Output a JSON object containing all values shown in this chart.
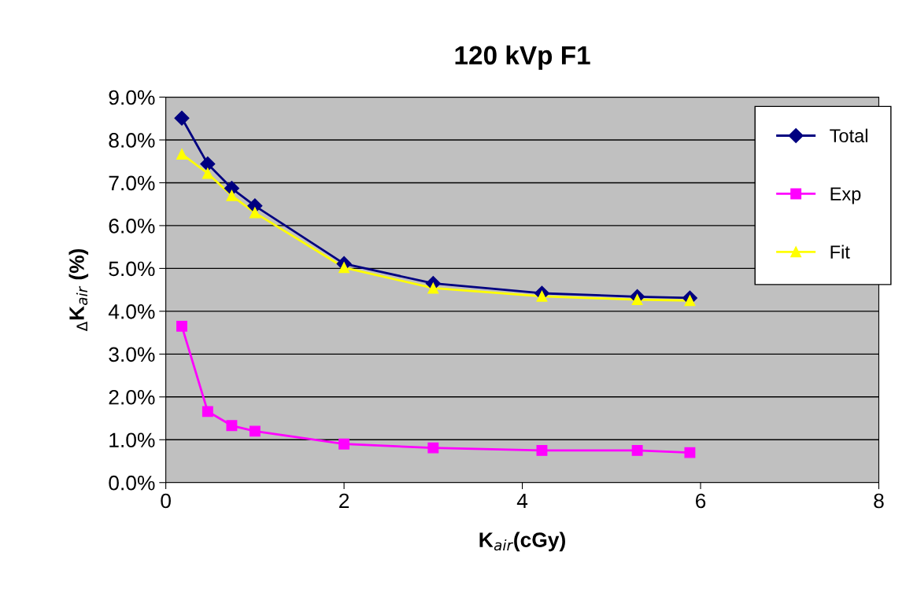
{
  "chart_data": {
    "type": "line",
    "title": "120 kVp F1",
    "xlabel": "K$_{air}$(cGy)",
    "ylabel": "$_{Δ}$K$_{air}$ (%)",
    "x": [
      0.18,
      0.47,
      0.74,
      1.0,
      2.0,
      3.0,
      4.22,
      5.29,
      5.88
    ],
    "series": [
      {
        "name": "Total",
        "color": "#000080",
        "marker": "diamond",
        "values": [
          8.51,
          7.44,
          6.87,
          6.46,
          5.11,
          4.65,
          4.42,
          4.34,
          4.31
        ]
      },
      {
        "name": "Exp",
        "color": "#ff00ff",
        "marker": "square",
        "values": [
          3.65,
          1.66,
          1.33,
          1.2,
          0.9,
          0.81,
          0.75,
          0.75,
          0.7
        ]
      },
      {
        "name": "Fit",
        "color": "#ffff00",
        "marker": "triangle",
        "values": [
          7.67,
          7.22,
          6.7,
          6.3,
          5.02,
          4.54,
          4.35,
          4.27,
          4.25
        ]
      }
    ],
    "xlim": [
      0,
      8
    ],
    "xticks": [
      0,
      2,
      4,
      6,
      8
    ],
    "ylim": [
      0,
      9
    ],
    "yticks": [
      {
        "value": 0,
        "label": "0.0%"
      },
      {
        "value": 1,
        "label": "1.0%"
      },
      {
        "value": 2,
        "label": "2.0%"
      },
      {
        "value": 3,
        "label": "3.0%"
      },
      {
        "value": 4,
        "label": "4.0%"
      },
      {
        "value": 5,
        "label": "5.0%"
      },
      {
        "value": 6,
        "label": "6.0%"
      },
      {
        "value": 7,
        "label": "7.0%"
      },
      {
        "value": 8,
        "label": "8.0%"
      },
      {
        "value": 9,
        "label": "9.0%"
      }
    ],
    "grid": "y",
    "legend": "top right",
    "line_style": "solid"
  }
}
